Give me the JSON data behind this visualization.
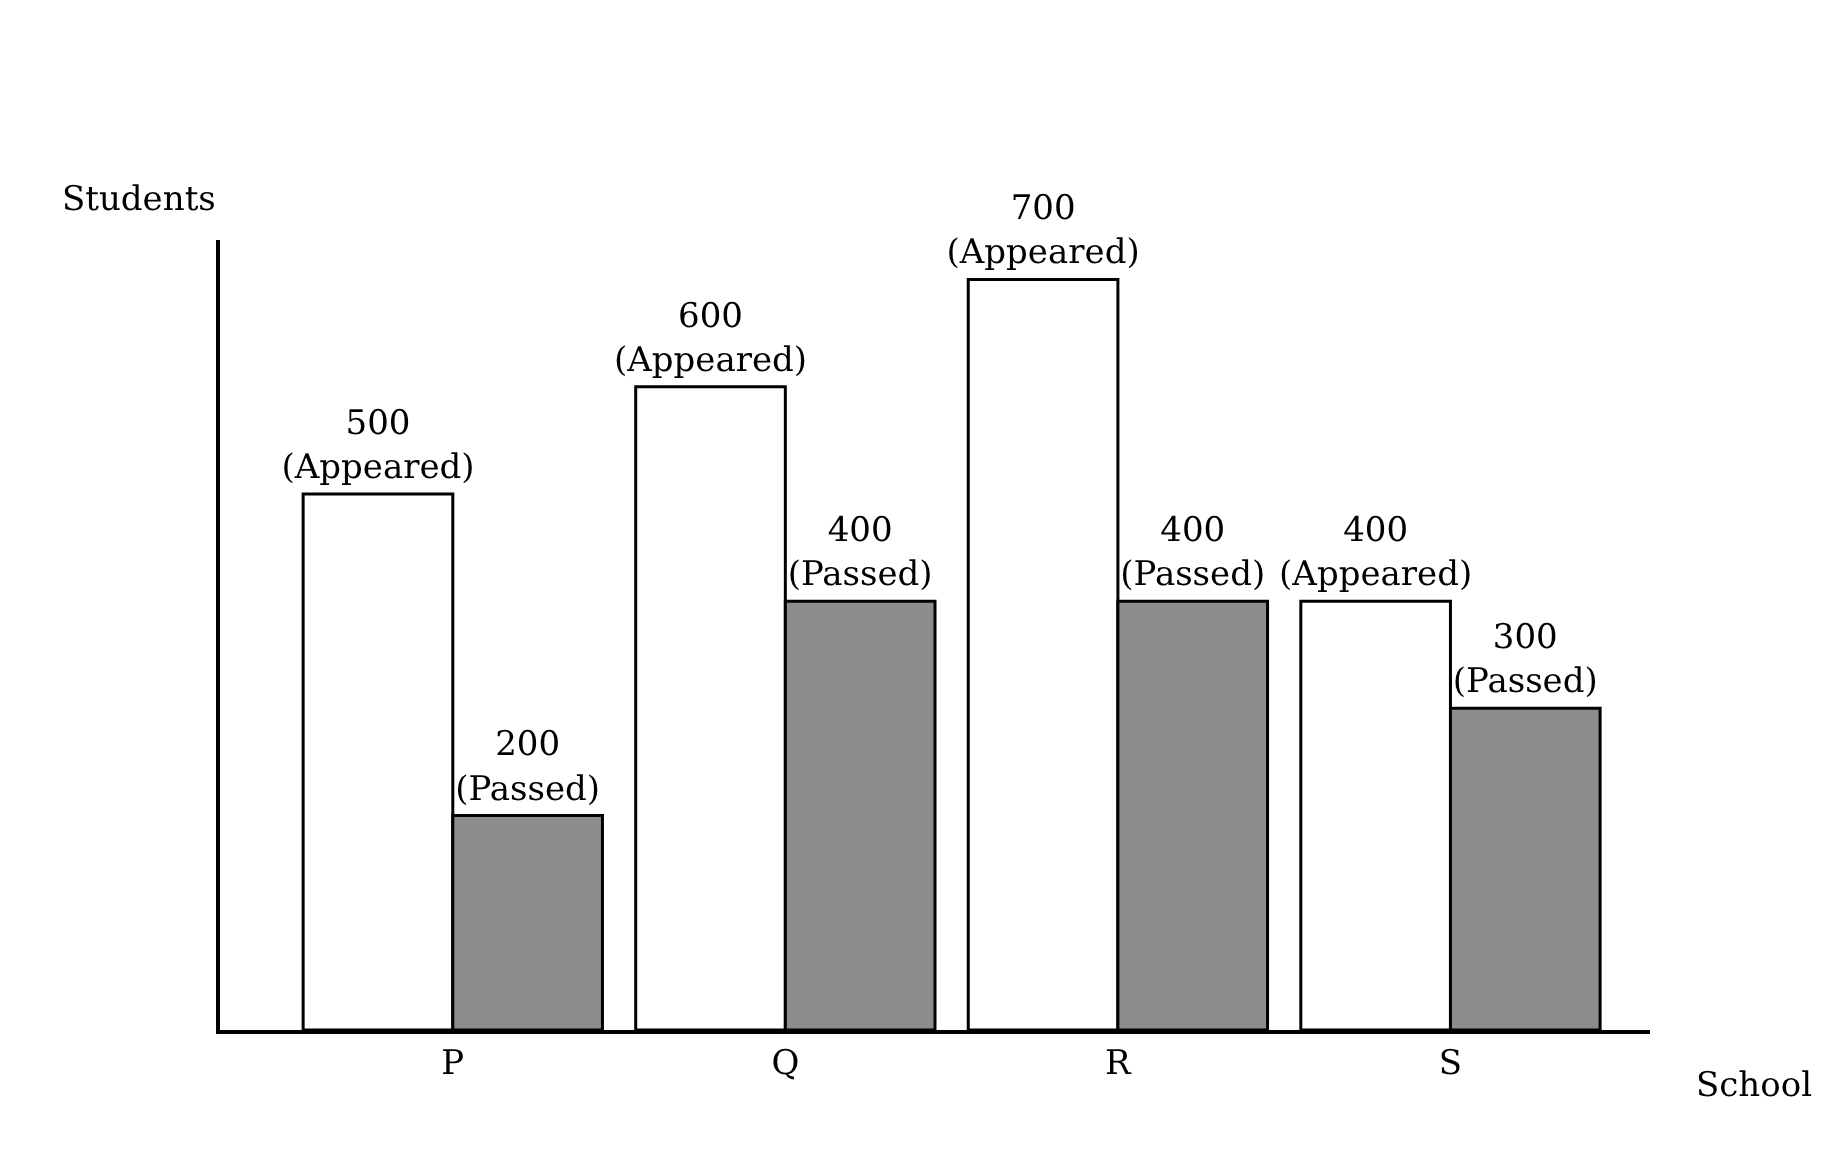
{
  "chart_data": {
    "type": "bar",
    "xlabel": "School",
    "ylabel": "Students",
    "categories": [
      "P",
      "Q",
      "R",
      "S"
    ],
    "series": [
      {
        "color": "#ffffff",
        "values": [
          500,
          600,
          700,
          400
        ],
        "value_labels": [
          "500\n(Appeared)",
          "600\n(Appeared)",
          "700\n(Appeared)",
          "400\n(Appeared)"
        ]
      },
      {
        "color": "#8c8c8c",
        "values": [
          200,
          400,
          400,
          300
        ],
        "value_labels": [
          "200\n(Passed)",
          "400\n(Passed)",
          "400\n(Passed)",
          "300\n(Passed)"
        ]
      }
    ],
    "tick_labels": "x"
  }
}
